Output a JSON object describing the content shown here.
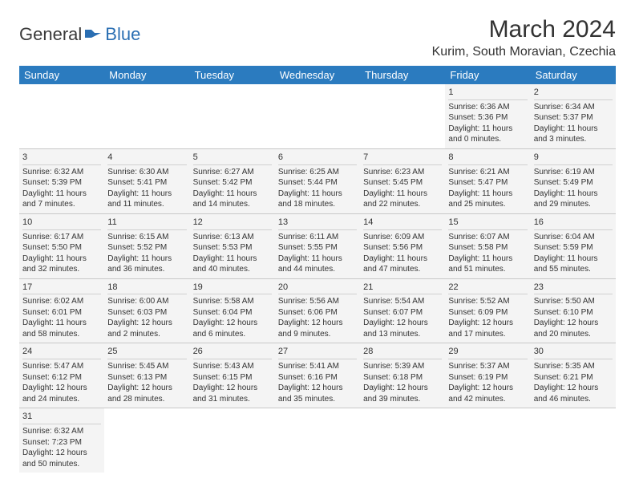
{
  "logo": {
    "part1": "General",
    "part2": "Blue"
  },
  "title": "March 2024",
  "location": "Kurim, South Moravian, Czechia",
  "colors": {
    "header_bg": "#2b7bbf",
    "header_text": "#ffffff",
    "cell_bg": "#f4f4f4",
    "border": "#c8c8c8",
    "logo_blue": "#2b6fb3",
    "text": "#333333"
  },
  "weekdays": [
    "Sunday",
    "Monday",
    "Tuesday",
    "Wednesday",
    "Thursday",
    "Friday",
    "Saturday"
  ],
  "weeks": [
    [
      null,
      null,
      null,
      null,
      null,
      {
        "n": "1",
        "sr": "Sunrise: 6:36 AM",
        "ss": "Sunset: 5:36 PM",
        "dl1": "Daylight: 11 hours",
        "dl2": "and 0 minutes."
      },
      {
        "n": "2",
        "sr": "Sunrise: 6:34 AM",
        "ss": "Sunset: 5:37 PM",
        "dl1": "Daylight: 11 hours",
        "dl2": "and 3 minutes."
      }
    ],
    [
      {
        "n": "3",
        "sr": "Sunrise: 6:32 AM",
        "ss": "Sunset: 5:39 PM",
        "dl1": "Daylight: 11 hours",
        "dl2": "and 7 minutes."
      },
      {
        "n": "4",
        "sr": "Sunrise: 6:30 AM",
        "ss": "Sunset: 5:41 PM",
        "dl1": "Daylight: 11 hours",
        "dl2": "and 11 minutes."
      },
      {
        "n": "5",
        "sr": "Sunrise: 6:27 AM",
        "ss": "Sunset: 5:42 PM",
        "dl1": "Daylight: 11 hours",
        "dl2": "and 14 minutes."
      },
      {
        "n": "6",
        "sr": "Sunrise: 6:25 AM",
        "ss": "Sunset: 5:44 PM",
        "dl1": "Daylight: 11 hours",
        "dl2": "and 18 minutes."
      },
      {
        "n": "7",
        "sr": "Sunrise: 6:23 AM",
        "ss": "Sunset: 5:45 PM",
        "dl1": "Daylight: 11 hours",
        "dl2": "and 22 minutes."
      },
      {
        "n": "8",
        "sr": "Sunrise: 6:21 AM",
        "ss": "Sunset: 5:47 PM",
        "dl1": "Daylight: 11 hours",
        "dl2": "and 25 minutes."
      },
      {
        "n": "9",
        "sr": "Sunrise: 6:19 AM",
        "ss": "Sunset: 5:49 PM",
        "dl1": "Daylight: 11 hours",
        "dl2": "and 29 minutes."
      }
    ],
    [
      {
        "n": "10",
        "sr": "Sunrise: 6:17 AM",
        "ss": "Sunset: 5:50 PM",
        "dl1": "Daylight: 11 hours",
        "dl2": "and 32 minutes."
      },
      {
        "n": "11",
        "sr": "Sunrise: 6:15 AM",
        "ss": "Sunset: 5:52 PM",
        "dl1": "Daylight: 11 hours",
        "dl2": "and 36 minutes."
      },
      {
        "n": "12",
        "sr": "Sunrise: 6:13 AM",
        "ss": "Sunset: 5:53 PM",
        "dl1": "Daylight: 11 hours",
        "dl2": "and 40 minutes."
      },
      {
        "n": "13",
        "sr": "Sunrise: 6:11 AM",
        "ss": "Sunset: 5:55 PM",
        "dl1": "Daylight: 11 hours",
        "dl2": "and 44 minutes."
      },
      {
        "n": "14",
        "sr": "Sunrise: 6:09 AM",
        "ss": "Sunset: 5:56 PM",
        "dl1": "Daylight: 11 hours",
        "dl2": "and 47 minutes."
      },
      {
        "n": "15",
        "sr": "Sunrise: 6:07 AM",
        "ss": "Sunset: 5:58 PM",
        "dl1": "Daylight: 11 hours",
        "dl2": "and 51 minutes."
      },
      {
        "n": "16",
        "sr": "Sunrise: 6:04 AM",
        "ss": "Sunset: 5:59 PM",
        "dl1": "Daylight: 11 hours",
        "dl2": "and 55 minutes."
      }
    ],
    [
      {
        "n": "17",
        "sr": "Sunrise: 6:02 AM",
        "ss": "Sunset: 6:01 PM",
        "dl1": "Daylight: 11 hours",
        "dl2": "and 58 minutes."
      },
      {
        "n": "18",
        "sr": "Sunrise: 6:00 AM",
        "ss": "Sunset: 6:03 PM",
        "dl1": "Daylight: 12 hours",
        "dl2": "and 2 minutes."
      },
      {
        "n": "19",
        "sr": "Sunrise: 5:58 AM",
        "ss": "Sunset: 6:04 PM",
        "dl1": "Daylight: 12 hours",
        "dl2": "and 6 minutes."
      },
      {
        "n": "20",
        "sr": "Sunrise: 5:56 AM",
        "ss": "Sunset: 6:06 PM",
        "dl1": "Daylight: 12 hours",
        "dl2": "and 9 minutes."
      },
      {
        "n": "21",
        "sr": "Sunrise: 5:54 AM",
        "ss": "Sunset: 6:07 PM",
        "dl1": "Daylight: 12 hours",
        "dl2": "and 13 minutes."
      },
      {
        "n": "22",
        "sr": "Sunrise: 5:52 AM",
        "ss": "Sunset: 6:09 PM",
        "dl1": "Daylight: 12 hours",
        "dl2": "and 17 minutes."
      },
      {
        "n": "23",
        "sr": "Sunrise: 5:50 AM",
        "ss": "Sunset: 6:10 PM",
        "dl1": "Daylight: 12 hours",
        "dl2": "and 20 minutes."
      }
    ],
    [
      {
        "n": "24",
        "sr": "Sunrise: 5:47 AM",
        "ss": "Sunset: 6:12 PM",
        "dl1": "Daylight: 12 hours",
        "dl2": "and 24 minutes."
      },
      {
        "n": "25",
        "sr": "Sunrise: 5:45 AM",
        "ss": "Sunset: 6:13 PM",
        "dl1": "Daylight: 12 hours",
        "dl2": "and 28 minutes."
      },
      {
        "n": "26",
        "sr": "Sunrise: 5:43 AM",
        "ss": "Sunset: 6:15 PM",
        "dl1": "Daylight: 12 hours",
        "dl2": "and 31 minutes."
      },
      {
        "n": "27",
        "sr": "Sunrise: 5:41 AM",
        "ss": "Sunset: 6:16 PM",
        "dl1": "Daylight: 12 hours",
        "dl2": "and 35 minutes."
      },
      {
        "n": "28",
        "sr": "Sunrise: 5:39 AM",
        "ss": "Sunset: 6:18 PM",
        "dl1": "Daylight: 12 hours",
        "dl2": "and 39 minutes."
      },
      {
        "n": "29",
        "sr": "Sunrise: 5:37 AM",
        "ss": "Sunset: 6:19 PM",
        "dl1": "Daylight: 12 hours",
        "dl2": "and 42 minutes."
      },
      {
        "n": "30",
        "sr": "Sunrise: 5:35 AM",
        "ss": "Sunset: 6:21 PM",
        "dl1": "Daylight: 12 hours",
        "dl2": "and 46 minutes."
      }
    ],
    [
      {
        "n": "31",
        "sr": "Sunrise: 6:32 AM",
        "ss": "Sunset: 7:23 PM",
        "dl1": "Daylight: 12 hours",
        "dl2": "and 50 minutes."
      },
      null,
      null,
      null,
      null,
      null,
      null
    ]
  ]
}
